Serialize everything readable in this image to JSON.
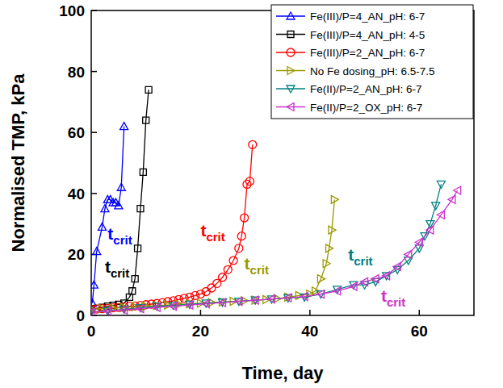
{
  "chart_data": {
    "type": "line",
    "x_label": "Time, day",
    "y_label": "Normalised TMP, kPa",
    "xlim": [
      0,
      70
    ],
    "xticks": [
      0,
      20,
      40,
      60
    ],
    "ylim": [
      0,
      100
    ],
    "yticks": [
      0,
      20,
      40,
      60,
      80,
      100
    ],
    "grid": false,
    "legend": "upper right",
    "series": [
      {
        "name": "Fe(III)/P=4_AN_pH: 6-7",
        "color": "#0000ff",
        "marker": "triangle-up",
        "x": [
          0.2,
          0.5,
          1,
          2,
          2.5,
          3,
          3.5,
          4,
          4.5,
          5,
          5.5,
          6
        ],
        "values": [
          4,
          10,
          21,
          29,
          35,
          38,
          38,
          37,
          37,
          36,
          42,
          62
        ]
      },
      {
        "name": "Fe(III)/P=4_AN_pH: 4-5",
        "color": "#000000",
        "marker": "square",
        "x": [
          0,
          1,
          2,
          3,
          4,
          5,
          6,
          7,
          7.5,
          8,
          8.5,
          9,
          9.5,
          10,
          10.5
        ],
        "values": [
          2,
          2.3,
          2.6,
          3,
          3.3,
          3.6,
          4,
          6,
          8,
          12,
          22,
          35,
          47,
          64,
          74
        ]
      },
      {
        "name": "Fe(III)/P=2_AN_pH: 6-7",
        "color": "#ff0000",
        "marker": "circle",
        "x": [
          0,
          1,
          2,
          3,
          4,
          5,
          6,
          7,
          8,
          9,
          10,
          11,
          12,
          13,
          14,
          15,
          16,
          17,
          18,
          19,
          20,
          21,
          22,
          23,
          24,
          25,
          26,
          27,
          27.5,
          28,
          28.5,
          29,
          29.5
        ],
        "values": [
          2,
          2.1,
          2.2,
          2.3,
          2.5,
          2.6,
          2.8,
          3,
          3.1,
          3.3,
          3.5,
          3.7,
          3.9,
          4.2,
          4.5,
          4.8,
          5.2,
          5.6,
          6,
          6.5,
          7,
          7.8,
          9,
          10.5,
          12.5,
          15,
          18,
          22,
          26,
          32,
          43,
          44,
          56
        ]
      },
      {
        "name": "No Fe dosing_pH: 6.5-7.5",
        "color": "#999900",
        "marker": "triangle-right",
        "x": [
          0,
          2,
          4,
          6,
          8,
          10,
          12,
          14,
          16,
          18,
          20,
          22,
          24,
          26,
          28,
          30,
          32,
          34,
          36,
          38,
          40,
          41,
          42,
          43,
          43.5,
          44,
          44.5
        ],
        "values": [
          2,
          2.2,
          2.4,
          2.6,
          2.8,
          3,
          3.2,
          3.4,
          3.6,
          3.8,
          4,
          4.2,
          4.4,
          4.6,
          4.8,
          5,
          5.2,
          5.5,
          6,
          6.5,
          7,
          8,
          12,
          17,
          22,
          28,
          38
        ]
      },
      {
        "name": "Fe(II)/P=2_AN_pH: 6-7",
        "color": "#008080",
        "marker": "triangle-down",
        "x": [
          0,
          3,
          6,
          9,
          12,
          15,
          18,
          21,
          24,
          27,
          30,
          33,
          36,
          39,
          42,
          45,
          48,
          50,
          52,
          54,
          56,
          58,
          60,
          61,
          62,
          63,
          64
        ],
        "values": [
          1,
          1.5,
          2,
          2.5,
          3,
          3.3,
          3.6,
          4,
          4.3,
          4.6,
          5,
          5.3,
          5.7,
          6,
          7,
          8.5,
          10,
          10,
          11,
          13,
          15,
          18,
          22,
          26,
          30,
          36,
          43
        ]
      },
      {
        "name": "Fe(II)/P=2_OX_pH: 6-7",
        "color": "#cc33cc",
        "marker": "triangle-left",
        "x": [
          0,
          3,
          6,
          9,
          12,
          15,
          18,
          21,
          24,
          27,
          30,
          33,
          36,
          39,
          42,
          45,
          48,
          50,
          52,
          54,
          56,
          58,
          60,
          62,
          64,
          66,
          67
        ],
        "values": [
          1,
          1.4,
          1.8,
          2.2,
          2.6,
          3,
          3.4,
          3.8,
          4.2,
          4.6,
          5,
          5.4,
          5.8,
          6.2,
          7,
          8,
          9.5,
          11,
          12,
          13,
          16,
          20,
          24,
          28,
          33,
          38,
          41
        ]
      }
    ],
    "annotations": [
      {
        "text": "t",
        "subscript": "crit",
        "x": 3,
        "y": 25,
        "color": "#0000ff"
      },
      {
        "text": "t",
        "subscript": "crit",
        "x": 2.5,
        "y": 14,
        "color": "#000000"
      },
      {
        "text": "t",
        "subscript": "crit",
        "x": 20,
        "y": 26,
        "color": "#ff0000"
      },
      {
        "text": "t",
        "subscript": "crit",
        "x": 28,
        "y": 15,
        "color": "#999900"
      },
      {
        "text": "t",
        "subscript": "crit",
        "x": 47,
        "y": 18,
        "color": "#008080"
      },
      {
        "text": "t",
        "subscript": "crit",
        "x": 53,
        "y": 4.5,
        "color": "#cc33cc"
      }
    ]
  }
}
